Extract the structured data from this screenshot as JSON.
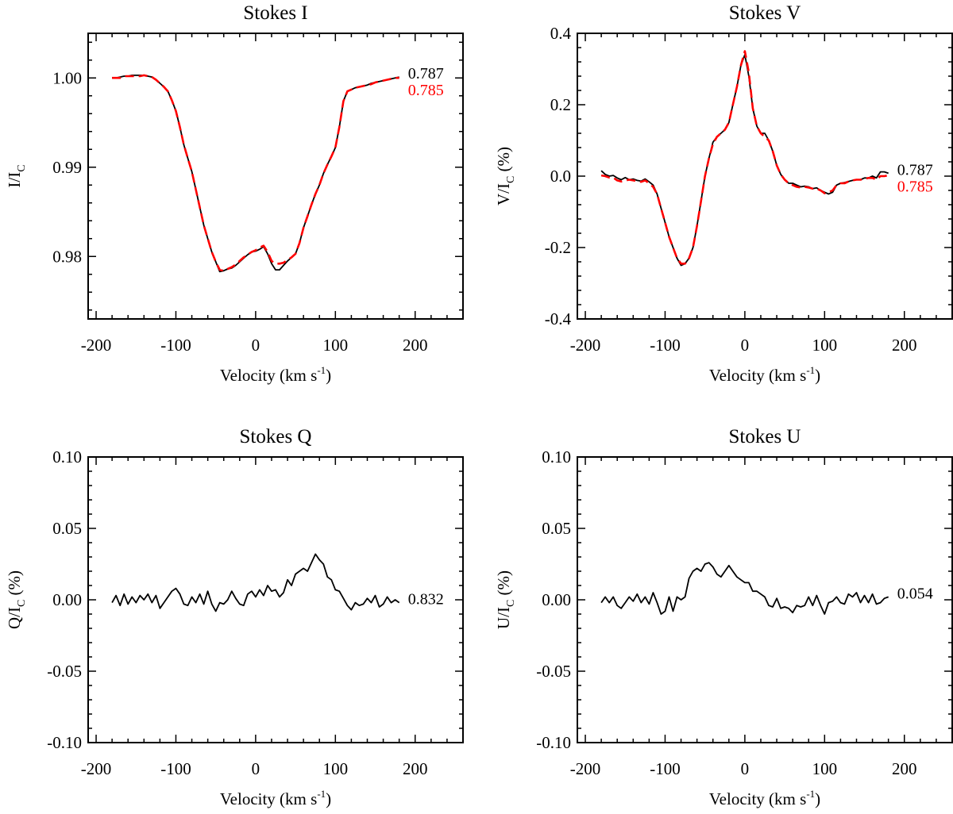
{
  "colors": {
    "observed": "#000000",
    "model": "#ff0000"
  },
  "chart_data": [
    {
      "type": "line",
      "title": "Stokes I",
      "xlabel": {
        "text": "Velocity (km s",
        "sup": "-1",
        "end": ")"
      },
      "ylabel": {
        "text": "I/I",
        "sub": "C",
        "end": ""
      },
      "xlim": [
        -210,
        260
      ],
      "ylim": [
        0.973,
        1.005
      ],
      "xticks": [
        -200,
        -100,
        0,
        100,
        200
      ],
      "xtick_labels": [
        "-200",
        "-100",
        "0",
        "100",
        "200"
      ],
      "x_minor_step": 20,
      "yticks": [
        0.98,
        0.99,
        1.0
      ],
      "ytick_labels": [
        "0.98",
        "0.99",
        "1.00"
      ],
      "y_minor_step": 0.002,
      "grid": false,
      "annotations": [
        {
          "text": "0.787",
          "color": "#000000"
        },
        {
          "text": "0.785",
          "color": "#ff0000"
        }
      ],
      "x": [
        -180,
        -175,
        -170,
        -165,
        -160,
        -155,
        -150,
        -145,
        -140,
        -135,
        -130,
        -125,
        -120,
        -115,
        -110,
        -105,
        -100,
        -95,
        -90,
        -85,
        -80,
        -75,
        -70,
        -65,
        -60,
        -55,
        -50,
        -45,
        -40,
        -35,
        -30,
        -25,
        -20,
        -15,
        -10,
        -5,
        0,
        5,
        10,
        15,
        20,
        25,
        30,
        35,
        40,
        45,
        50,
        55,
        60,
        65,
        70,
        75,
        80,
        85,
        90,
        95,
        100,
        105,
        110,
        115,
        120,
        125,
        130,
        135,
        140,
        145,
        150,
        155,
        160,
        165,
        170,
        175,
        180
      ],
      "series": [
        {
          "style": "solid",
          "color": "#000000",
          "values": [
            1.0,
            1.0,
            1.0001,
            1.0002,
            1.0002,
            1.0003,
            1.0003,
            1.0003,
            1.0003,
            1.0002,
            1.0001,
            0.9998,
            0.9994,
            0.999,
            0.9985,
            0.9975,
            0.9963,
            0.9945,
            0.9925,
            0.991,
            0.9895,
            0.9875,
            0.9855,
            0.9835,
            0.982,
            0.9805,
            0.9794,
            0.9783,
            0.9784,
            0.9786,
            0.9787,
            0.979,
            0.9794,
            0.9798,
            0.9802,
            0.9805,
            0.9806,
            0.9808,
            0.9811,
            0.9803,
            0.9792,
            0.9785,
            0.9785,
            0.979,
            0.9795,
            0.9799,
            0.9803,
            0.9815,
            0.9832,
            0.9845,
            0.9858,
            0.987,
            0.988,
            0.9893,
            0.9903,
            0.9912,
            0.9922,
            0.9945,
            0.9974,
            0.9985,
            0.9987,
            0.9989,
            0.999,
            0.9991,
            0.9992,
            0.9994,
            0.9995,
            0.9996,
            0.9997,
            0.9998,
            0.9999,
            1.0,
            1.0001
          ]
        },
        {
          "style": "dashed",
          "color": "#ff0000",
          "values": [
            1.0,
            1.0,
            1.0,
            1.0002,
            1.0002,
            1.0002,
            1.0002,
            1.0002,
            1.0003,
            1.0002,
            1.0001,
            0.9998,
            0.9994,
            0.999,
            0.9985,
            0.9975,
            0.9963,
            0.9945,
            0.9925,
            0.991,
            0.9895,
            0.9875,
            0.9855,
            0.9835,
            0.982,
            0.9805,
            0.9794,
            0.9785,
            0.9784,
            0.9786,
            0.9788,
            0.9791,
            0.9795,
            0.9799,
            0.9802,
            0.9805,
            0.9807,
            0.981,
            0.9812,
            0.9805,
            0.9795,
            0.9792,
            0.9792,
            0.9793,
            0.9796,
            0.9799,
            0.9803,
            0.9815,
            0.9832,
            0.9845,
            0.9858,
            0.987,
            0.988,
            0.9893,
            0.9903,
            0.9912,
            0.9922,
            0.9945,
            0.9974,
            0.9985,
            0.9987,
            0.9989,
            0.999,
            0.9991,
            0.9992,
            0.9993,
            0.9995,
            0.9996,
            0.9997,
            0.9998,
            0.9999,
            1.0,
            1.0
          ]
        }
      ]
    },
    {
      "type": "line",
      "title": "Stokes V",
      "xlabel": {
        "text": "Velocity (km s",
        "sup": "-1",
        "end": ")"
      },
      "ylabel": {
        "text": "V/I",
        "sub": "C",
        "end": " (%)"
      },
      "xlim": [
        -210,
        260
      ],
      "ylim": [
        -0.4,
        0.4
      ],
      "xticks": [
        -200,
        -100,
        0,
        100,
        200
      ],
      "xtick_labels": [
        "-200",
        "-100",
        "0",
        "100",
        "200"
      ],
      "x_minor_step": 20,
      "yticks": [
        -0.4,
        -0.2,
        0.0,
        0.2,
        0.4
      ],
      "ytick_labels": [
        "-0.4",
        "-0.2",
        "0.0",
        "0.2",
        "0.4"
      ],
      "y_minor_step": 0.04,
      "grid": false,
      "annotations": [
        {
          "text": "0.787",
          "color": "#000000"
        },
        {
          "text": "0.785",
          "color": "#ff0000"
        }
      ],
      "x": [
        -180,
        -175,
        -170,
        -165,
        -160,
        -155,
        -150,
        -145,
        -140,
        -135,
        -130,
        -125,
        -120,
        -115,
        -110,
        -105,
        -100,
        -95,
        -90,
        -85,
        -80,
        -75,
        -70,
        -65,
        -60,
        -55,
        -50,
        -45,
        -40,
        -35,
        -30,
        -25,
        -20,
        -15,
        -10,
        -5,
        0,
        5,
        10,
        15,
        20,
        25,
        30,
        35,
        40,
        45,
        50,
        55,
        60,
        65,
        70,
        75,
        80,
        85,
        90,
        95,
        100,
        105,
        110,
        115,
        120,
        125,
        130,
        135,
        140,
        145,
        150,
        155,
        160,
        165,
        170,
        175,
        180
      ],
      "series": [
        {
          "style": "solid",
          "color": "#000000",
          "values": [
            0.015,
            0.005,
            0.0,
            0.002,
            -0.005,
            -0.01,
            -0.004,
            -0.01,
            -0.008,
            -0.012,
            -0.014,
            -0.008,
            -0.016,
            -0.025,
            -0.05,
            -0.09,
            -0.13,
            -0.17,
            -0.2,
            -0.23,
            -0.25,
            -0.245,
            -0.23,
            -0.2,
            -0.14,
            -0.07,
            0.0,
            0.05,
            0.095,
            0.11,
            0.12,
            0.13,
            0.15,
            0.2,
            0.25,
            0.31,
            0.34,
            0.28,
            0.19,
            0.14,
            0.12,
            0.12,
            0.1,
            0.07,
            0.03,
            0.005,
            -0.01,
            -0.02,
            -0.02,
            -0.025,
            -0.03,
            -0.028,
            -0.03,
            -0.035,
            -0.033,
            -0.04,
            -0.045,
            -0.05,
            -0.045,
            -0.025,
            -0.02,
            -0.018,
            -0.015,
            -0.012,
            -0.01,
            -0.01,
            -0.005,
            -0.005,
            0.0,
            -0.005,
            0.012,
            0.012,
            0.008
          ]
        },
        {
          "style": "dashed",
          "color": "#ff0000",
          "values": [
            0.002,
            0.0,
            -0.004,
            -0.004,
            -0.012,
            -0.015,
            -0.012,
            -0.01,
            -0.012,
            -0.014,
            -0.016,
            -0.012,
            -0.02,
            -0.03,
            -0.05,
            -0.09,
            -0.13,
            -0.17,
            -0.2,
            -0.23,
            -0.245,
            -0.245,
            -0.23,
            -0.2,
            -0.14,
            -0.07,
            0.0,
            0.05,
            0.09,
            0.11,
            0.12,
            0.13,
            0.15,
            0.2,
            0.25,
            0.31,
            0.35,
            0.29,
            0.19,
            0.14,
            0.12,
            0.11,
            0.1,
            0.07,
            0.03,
            0.005,
            -0.01,
            -0.02,
            -0.025,
            -0.03,
            -0.032,
            -0.03,
            -0.032,
            -0.035,
            -0.035,
            -0.04,
            -0.048,
            -0.045,
            -0.04,
            -0.025,
            -0.02,
            -0.02,
            -0.015,
            -0.012,
            -0.01,
            -0.01,
            -0.008,
            -0.005,
            -0.005,
            -0.01,
            0.0,
            0.0,
            0.002
          ]
        }
      ]
    },
    {
      "type": "line",
      "title": "Stokes Q",
      "xlabel": {
        "text": "Velocity (km s",
        "sup": "-1",
        "end": ")"
      },
      "ylabel": {
        "text": "Q/I",
        "sub": "C",
        "end": " (%)"
      },
      "xlim": [
        -210,
        260
      ],
      "ylim": [
        -0.1,
        0.1
      ],
      "xticks": [
        -200,
        -100,
        0,
        100,
        200
      ],
      "xtick_labels": [
        "-200",
        "-100",
        "0",
        "100",
        "200"
      ],
      "x_minor_step": 20,
      "yticks": [
        -0.1,
        -0.05,
        0.0,
        0.05,
        0.1
      ],
      "ytick_labels": [
        "-0.10",
        "-0.05",
        "0.00",
        "0.05",
        "0.10"
      ],
      "y_minor_step": 0.01,
      "grid": false,
      "annotations": [
        {
          "text": "0.832",
          "color": "#000000"
        }
      ],
      "x": [
        -180,
        -175,
        -170,
        -165,
        -160,
        -155,
        -150,
        -145,
        -140,
        -135,
        -130,
        -125,
        -120,
        -115,
        -110,
        -105,
        -100,
        -95,
        -90,
        -85,
        -80,
        -75,
        -70,
        -65,
        -60,
        -55,
        -50,
        -45,
        -40,
        -35,
        -30,
        -25,
        -20,
        -15,
        -10,
        -5,
        0,
        5,
        10,
        15,
        20,
        25,
        30,
        35,
        40,
        45,
        50,
        55,
        60,
        65,
        70,
        75,
        80,
        85,
        90,
        95,
        100,
        105,
        110,
        115,
        120,
        125,
        130,
        135,
        140,
        145,
        150,
        155,
        160,
        165,
        170,
        175,
        180
      ],
      "series": [
        {
          "style": "solid",
          "color": "#000000",
          "values": [
            -0.002,
            0.003,
            -0.004,
            0.004,
            -0.003,
            0.002,
            -0.002,
            0.003,
            0.0,
            0.004,
            -0.002,
            0.003,
            -0.006,
            -0.002,
            0.002,
            0.006,
            0.008,
            0.004,
            -0.003,
            -0.004,
            0.002,
            -0.002,
            0.004,
            -0.003,
            0.006,
            -0.003,
            -0.008,
            -0.002,
            -0.003,
            0.0,
            0.006,
            0.001,
            -0.003,
            -0.004,
            0.004,
            0.006,
            0.002,
            0.007,
            0.003,
            0.01,
            0.006,
            0.007,
            0.002,
            0.005,
            0.014,
            0.01,
            0.018,
            0.02,
            0.022,
            0.02,
            0.026,
            0.032,
            0.028,
            0.025,
            0.016,
            0.014,
            0.007,
            0.006,
            0.001,
            -0.004,
            -0.007,
            -0.002,
            -0.004,
            -0.003,
            0.001,
            -0.002,
            0.003,
            -0.005,
            -0.003,
            0.002,
            -0.002,
            0.0,
            -0.002
          ]
        }
      ]
    },
    {
      "type": "line",
      "title": "Stokes U",
      "xlabel": {
        "text": "Velocity (km s",
        "sup": "-1",
        "end": ")"
      },
      "ylabel": {
        "text": "U/I",
        "sub": "C",
        "end": " (%)"
      },
      "xlim": [
        -210,
        260
      ],
      "ylim": [
        -0.1,
        0.1
      ],
      "xticks": [
        -200,
        -100,
        0,
        100,
        200
      ],
      "xtick_labels": [
        "-200",
        "-100",
        "0",
        "100",
        "200"
      ],
      "x_minor_step": 20,
      "yticks": [
        -0.1,
        -0.05,
        0.0,
        0.05,
        0.1
      ],
      "ytick_labels": [
        "-0.10",
        "-0.05",
        "0.00",
        "0.05",
        "0.10"
      ],
      "y_minor_step": 0.01,
      "grid": false,
      "annotations": [
        {
          "text": "0.054",
          "color": "#000000"
        }
      ],
      "x": [
        -180,
        -175,
        -170,
        -165,
        -160,
        -155,
        -150,
        -145,
        -140,
        -135,
        -130,
        -125,
        -120,
        -115,
        -110,
        -105,
        -100,
        -95,
        -90,
        -85,
        -80,
        -75,
        -70,
        -65,
        -60,
        -55,
        -50,
        -45,
        -40,
        -35,
        -30,
        -25,
        -20,
        -15,
        -10,
        -5,
        0,
        5,
        10,
        15,
        20,
        25,
        30,
        35,
        40,
        45,
        50,
        55,
        60,
        65,
        70,
        75,
        80,
        85,
        90,
        95,
        100,
        105,
        110,
        115,
        120,
        125,
        130,
        135,
        140,
        145,
        150,
        155,
        160,
        165,
        170,
        175,
        180
      ],
      "series": [
        {
          "style": "solid",
          "color": "#000000",
          "values": [
            -0.002,
            0.002,
            -0.002,
            0.002,
            -0.004,
            -0.006,
            -0.002,
            0.002,
            -0.001,
            0.004,
            -0.002,
            0.002,
            -0.003,
            0.005,
            -0.002,
            -0.01,
            -0.008,
            0.002,
            -0.008,
            0.002,
            0.0,
            0.002,
            0.015,
            0.02,
            0.022,
            0.02,
            0.025,
            0.026,
            0.023,
            0.018,
            0.016,
            0.02,
            0.024,
            0.02,
            0.016,
            0.014,
            0.012,
            0.012,
            0.006,
            0.006,
            0.004,
            0.002,
            -0.004,
            -0.005,
            0.001,
            -0.006,
            -0.005,
            -0.006,
            -0.009,
            -0.004,
            -0.005,
            -0.004,
            0.002,
            -0.004,
            0.003,
            -0.004,
            -0.01,
            -0.002,
            -0.001,
            0.002,
            -0.002,
            -0.003,
            0.004,
            0.002,
            0.005,
            -0.002,
            0.003,
            -0.002,
            0.004,
            -0.003,
            -0.002,
            0.001,
            0.002
          ]
        }
      ]
    }
  ]
}
